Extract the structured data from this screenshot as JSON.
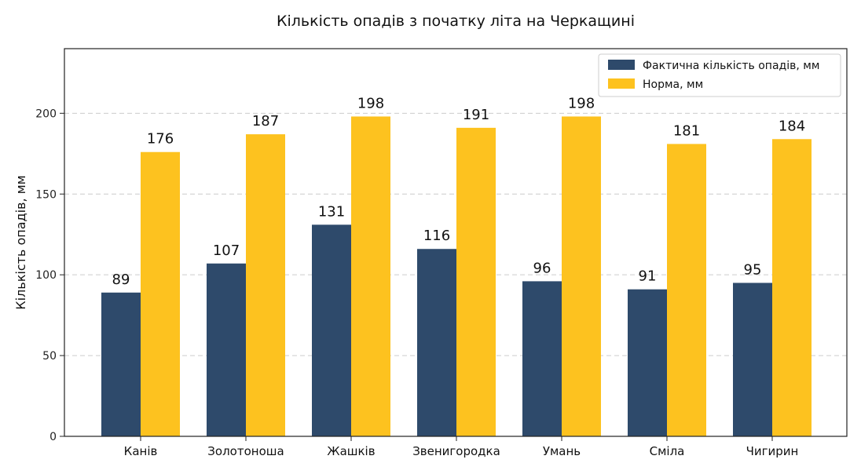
{
  "chart_data": {
    "type": "bar",
    "title": "Кількість опадів з початку літа на Черкащині",
    "xlabel": "",
    "ylabel": "Кількість опадів, мм",
    "categories": [
      "Канів",
      "Золотоноша",
      "Жашків",
      "Звенигородка",
      "Умань",
      "Сміла",
      "Чигирин"
    ],
    "series": [
      {
        "name": "Фактична кількість опадів, мм",
        "color": "#2e4a6b",
        "values": [
          89,
          107,
          131,
          116,
          96,
          91,
          95
        ]
      },
      {
        "name": "Норма, мм",
        "color": "#fdc21f",
        "values": [
          176,
          187,
          198,
          191,
          198,
          181,
          184
        ]
      }
    ],
    "ylim": [
      0,
      240
    ],
    "yticks": [
      0,
      50,
      100,
      150,
      200
    ],
    "grid": true,
    "legend_position": "top-right"
  }
}
